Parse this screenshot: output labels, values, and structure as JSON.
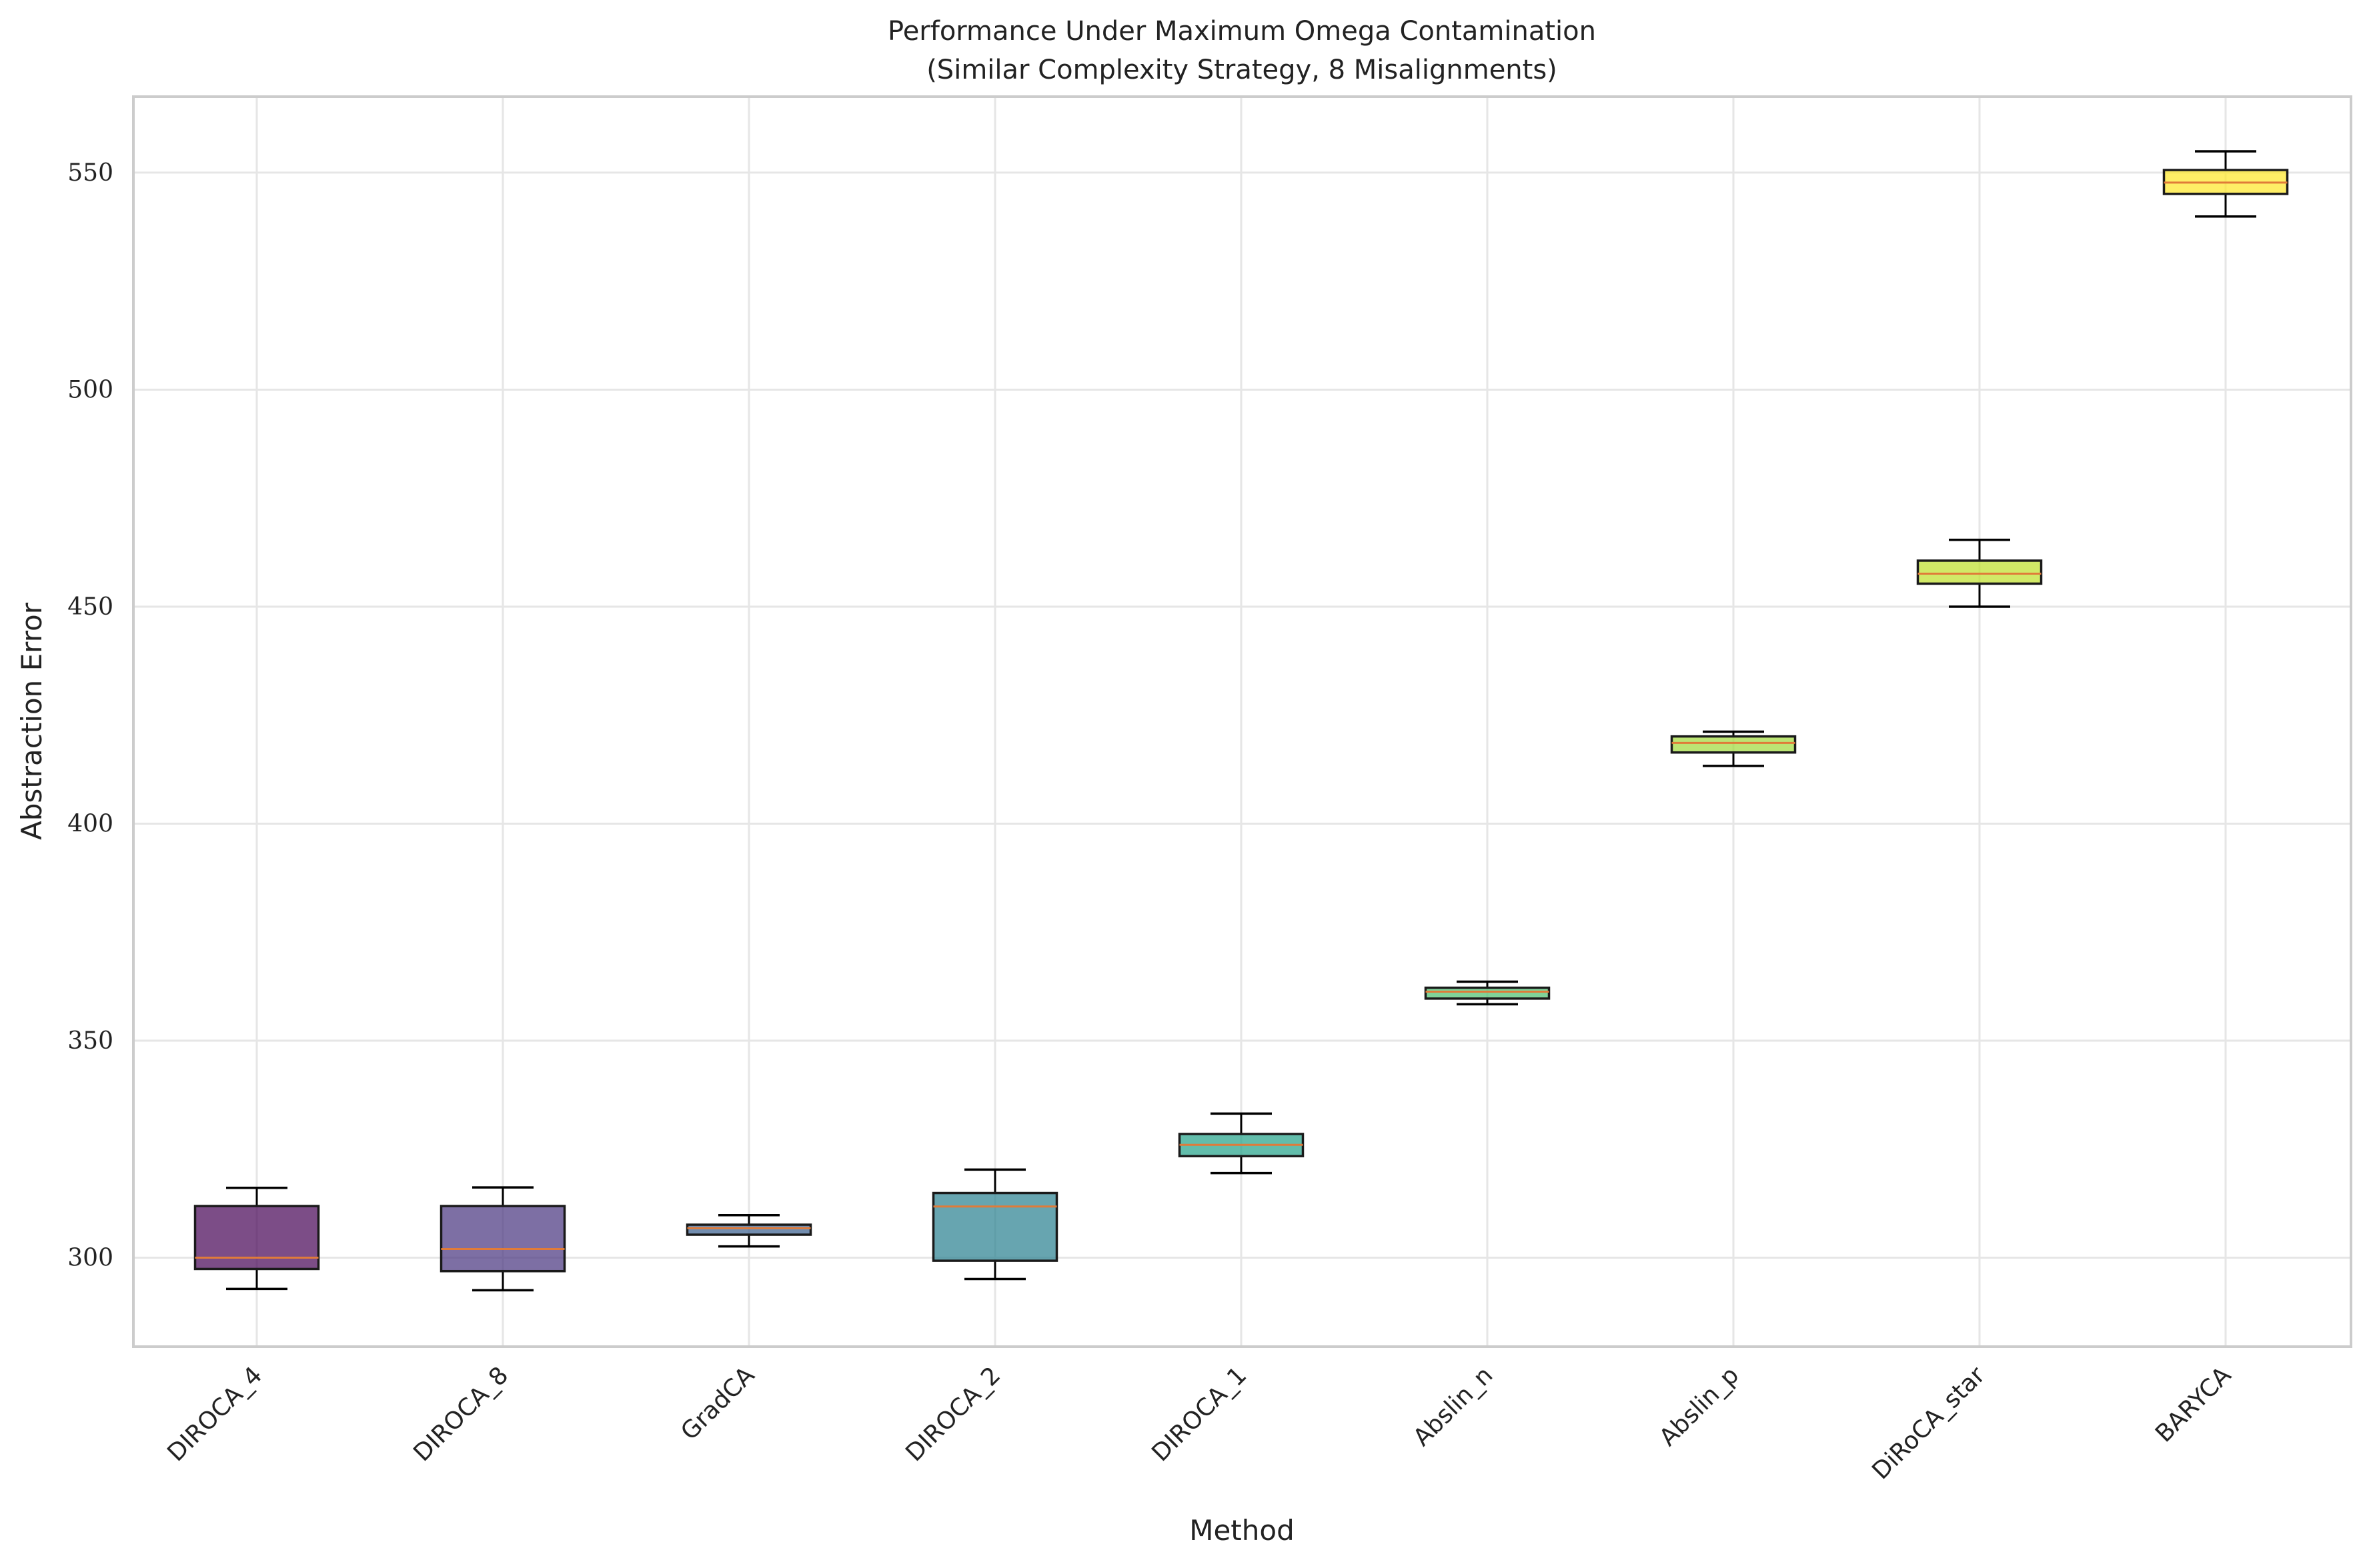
{
  "chart_data": {
    "type": "box",
    "title": "Performance Under Maximum Omega Contamination",
    "subtitle": "(Similar Complexity Strategy, 8 Misalignments)",
    "xlabel": "Method",
    "ylabel": "Abstraction Error",
    "ylim": [
      279.5,
      567.5
    ],
    "yticks": [
      300,
      350,
      400,
      450,
      500,
      550
    ],
    "grid": true,
    "legend": "none",
    "series": [
      {
        "category": "DIROCA_4",
        "whisker_low": 292.8,
        "q1": 297.4,
        "median": 300.0,
        "q3": 311.9,
        "whisker_high": 316.1,
        "color": "#440154"
      },
      {
        "category": "DIROCA_8",
        "whisker_low": 292.5,
        "q1": 296.9,
        "median": 302.0,
        "q3": 311.9,
        "whisker_high": 316.2,
        "color": "#46327e"
      },
      {
        "category": "GradCA",
        "whisker_low": 302.6,
        "q1": 305.3,
        "median": 306.8,
        "q3": 307.6,
        "whisker_high": 309.8,
        "color": "#365c8d"
      },
      {
        "category": "DIROCA_2",
        "whisker_low": 295.1,
        "q1": 299.3,
        "median": 311.8,
        "q3": 314.9,
        "whisker_high": 320.3,
        "color": "#277f8e"
      },
      {
        "category": "DIROCA_1",
        "whisker_low": 319.5,
        "q1": 323.4,
        "median": 326.0,
        "q3": 328.5,
        "whisker_high": 333.2,
        "color": "#1fa187"
      },
      {
        "category": "Abslin_n",
        "whisker_low": 358.4,
        "q1": 359.7,
        "median": 361.3,
        "q3": 362.2,
        "whisker_high": 363.6,
        "color": "#4ac16d"
      },
      {
        "category": "Abslin_p",
        "whisker_low": 413.3,
        "q1": 416.4,
        "median": 418.6,
        "q3": 420.1,
        "whisker_high": 421.2,
        "color": "#a0da39"
      },
      {
        "category": "DiRoCA_star",
        "whisker_low": 450.0,
        "q1": 455.3,
        "median": 457.6,
        "q3": 460.6,
        "whisker_high": 465.4,
        "color": "#bddf26"
      },
      {
        "category": "BARYCA",
        "whisker_low": 539.9,
        "q1": 545.1,
        "median": 547.7,
        "q3": 550.6,
        "whisker_high": 554.9,
        "color": "#fde725"
      }
    ]
  }
}
